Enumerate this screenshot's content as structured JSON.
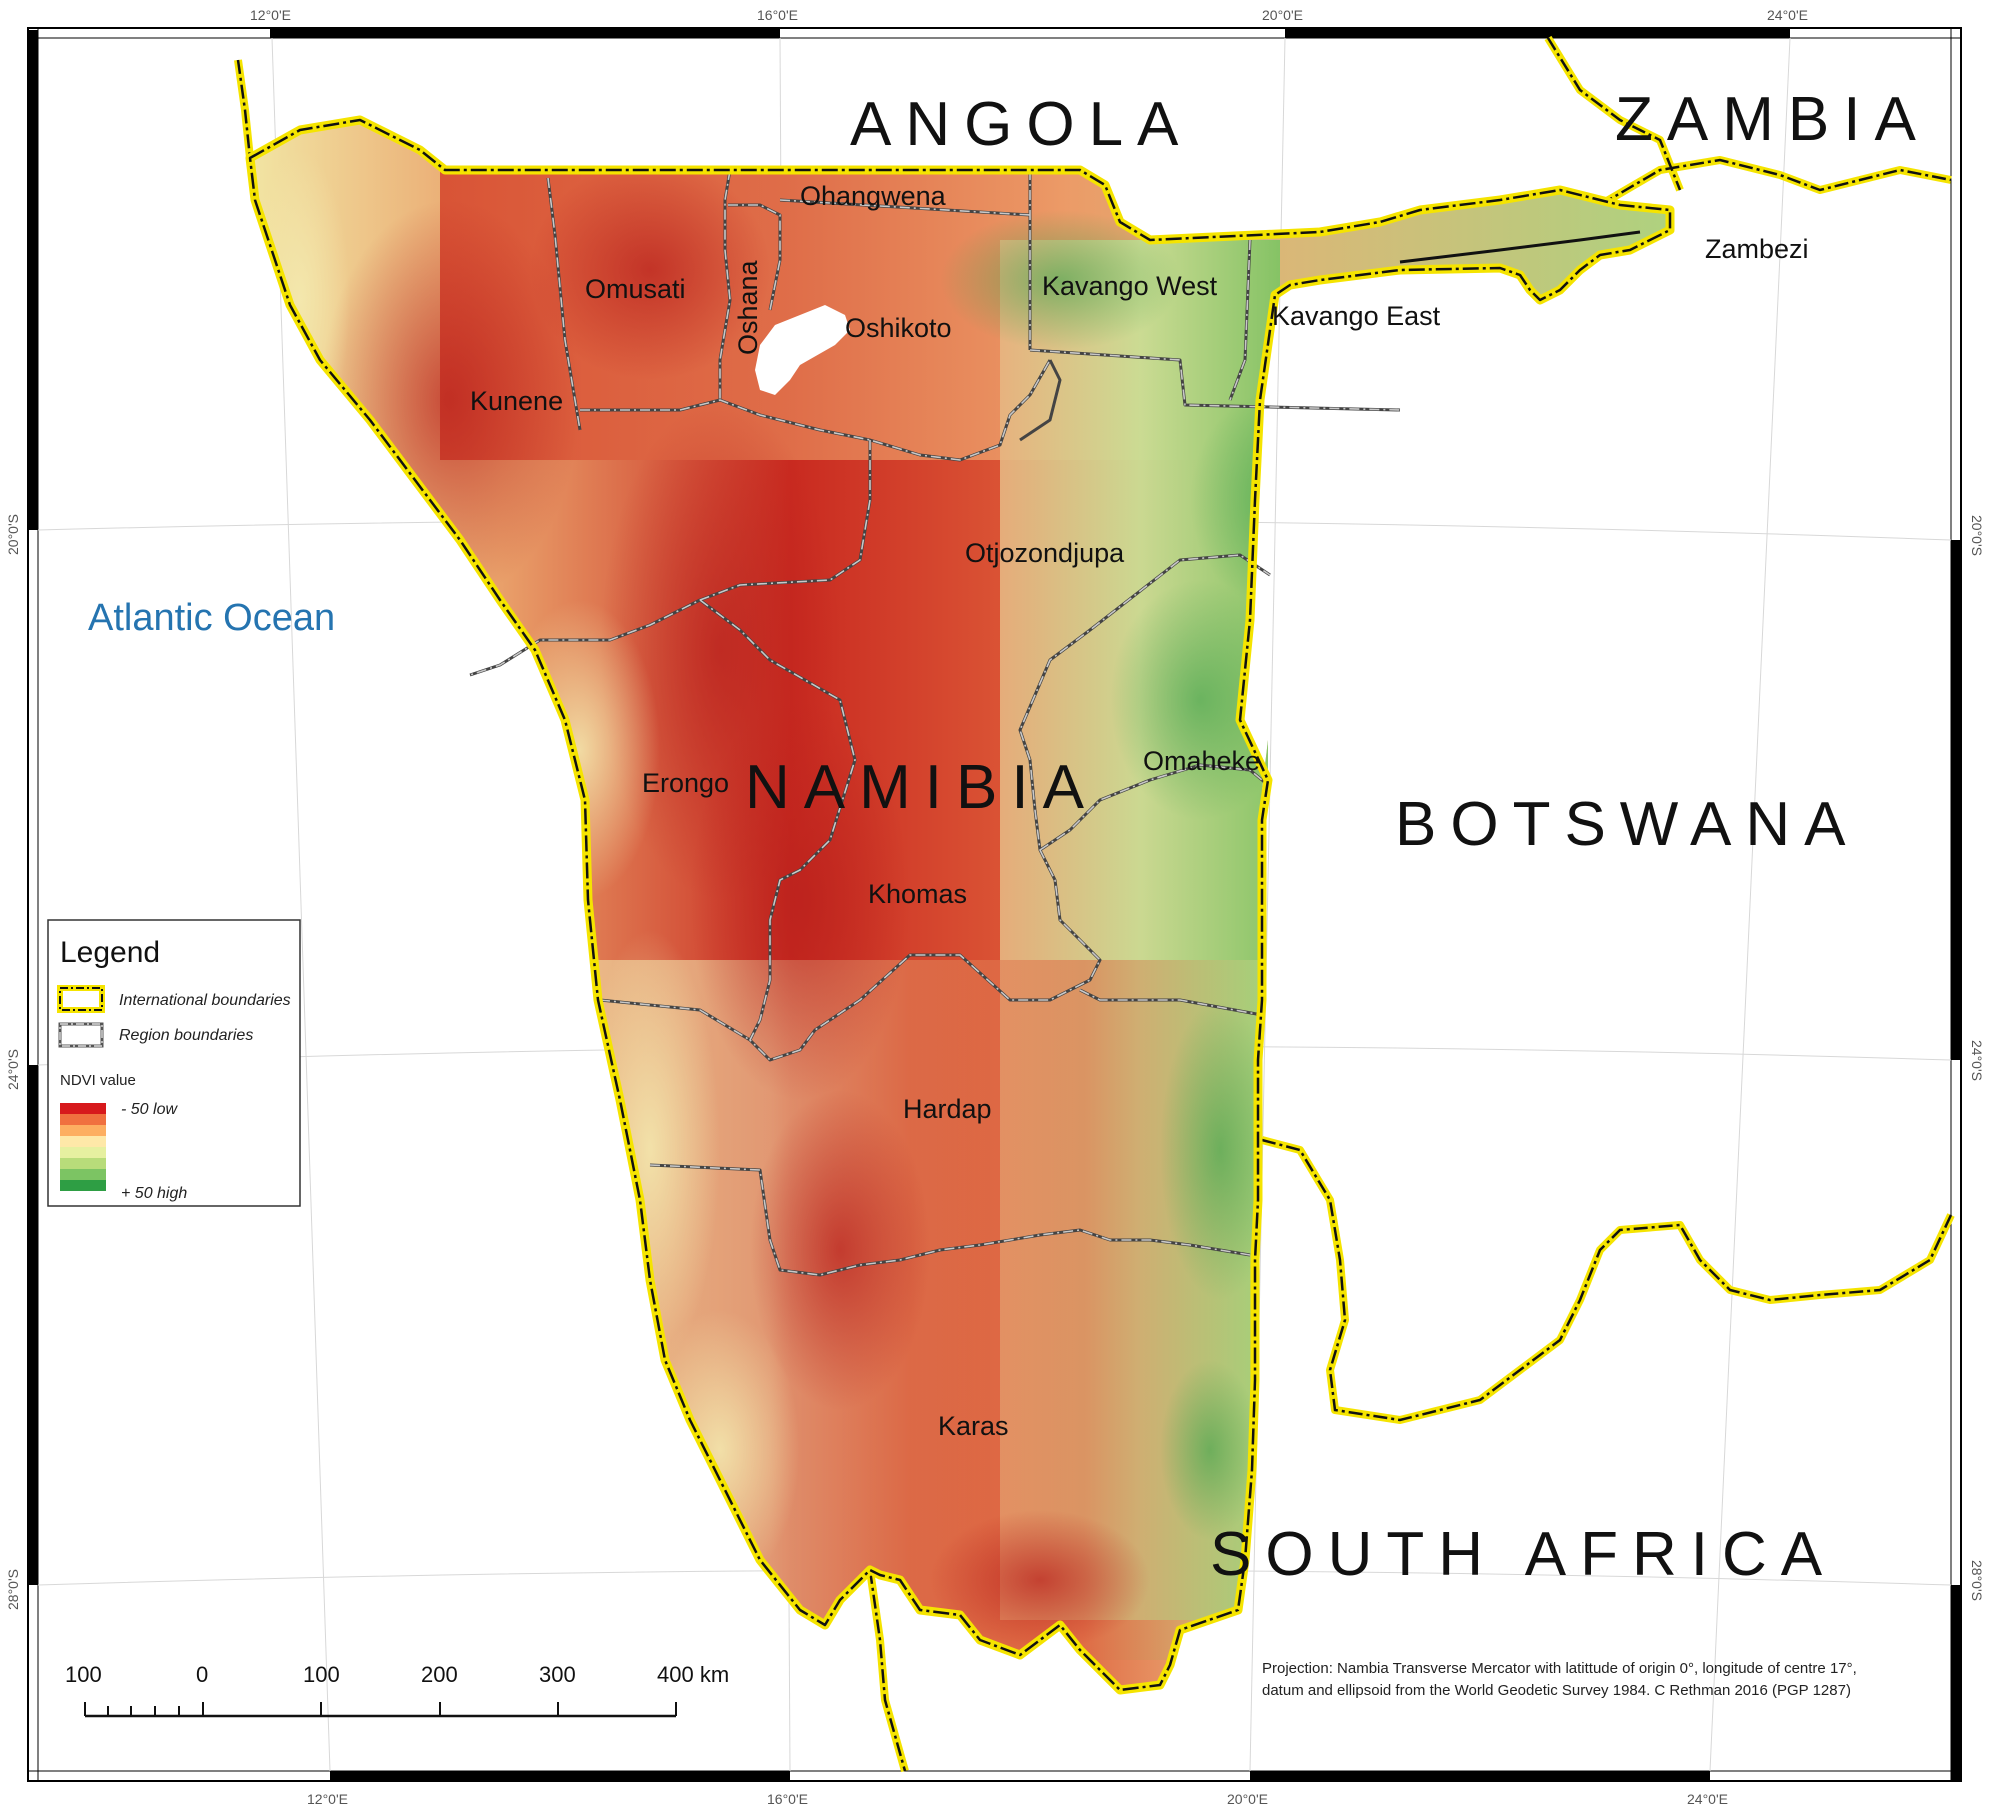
{
  "graticule": {
    "top": [
      "12°0'E",
      "16°0'E",
      "20°0'E",
      "24°0'E"
    ],
    "bottom": [
      "12°0'E",
      "16°0'E",
      "20°0'E",
      "24°0'E"
    ],
    "left": [
      "20°0'S",
      "24°0'S",
      "28°0'S"
    ],
    "right": [
      "20°0'S",
      "24°0'S",
      "28°0'S"
    ]
  },
  "countries": {
    "angola": "ANGOLA",
    "zambia": "ZAMBIA",
    "namibia": "NAMIBIA",
    "botswana": "BOTSWANA",
    "south_africa": "SOUTH AFRICA"
  },
  "ocean": "Atlantic Ocean",
  "regions": {
    "ohangwena": "Ohangwena",
    "omusati": "Omusati",
    "oshana": "Oshana",
    "oshikoto": "Oshikoto",
    "kavango_west": "Kavango West",
    "kavango_east": "Kavango East",
    "zambezi": "Zambezi",
    "kunene": "Kunene",
    "otjozondjupa": "Otjozondjupa",
    "erongo": "Erongo",
    "omaheke": "Omaheke",
    "khomas": "Khomas",
    "hardap": "Hardap",
    "karas": "Karas"
  },
  "legend": {
    "title": "Legend",
    "international": "International boundaries",
    "region": "Region boundaries",
    "ndvi_title": "NDVI value",
    "low": "- 50  low",
    "high": "+ 50 high",
    "ramp_colors": [
      "#d7191c",
      "#f0703f",
      "#fdae61",
      "#fee8a8",
      "#e6f0a0",
      "#b8dc7a",
      "#7cc463",
      "#2e9e44"
    ]
  },
  "scale": {
    "labels": [
      "100",
      "0",
      "100",
      "200",
      "300",
      "400 km"
    ]
  },
  "credit": {
    "line1": "Projection: Nambia Transverse Mercator with latittude of origin 0°,  longitude of centre 17°,",
    "line2": "datum and ellipsoid from the World Geodetic Survey 1984. C Rethman 2016 (PGP 1287)"
  },
  "colors": {
    "international_boundary": "#f5e400",
    "region_boundary": "#6b6b6b",
    "ocean_label": "#2574b0",
    "ndvi_low": "#c92a20",
    "ndvi_high": "#2e9e44"
  }
}
